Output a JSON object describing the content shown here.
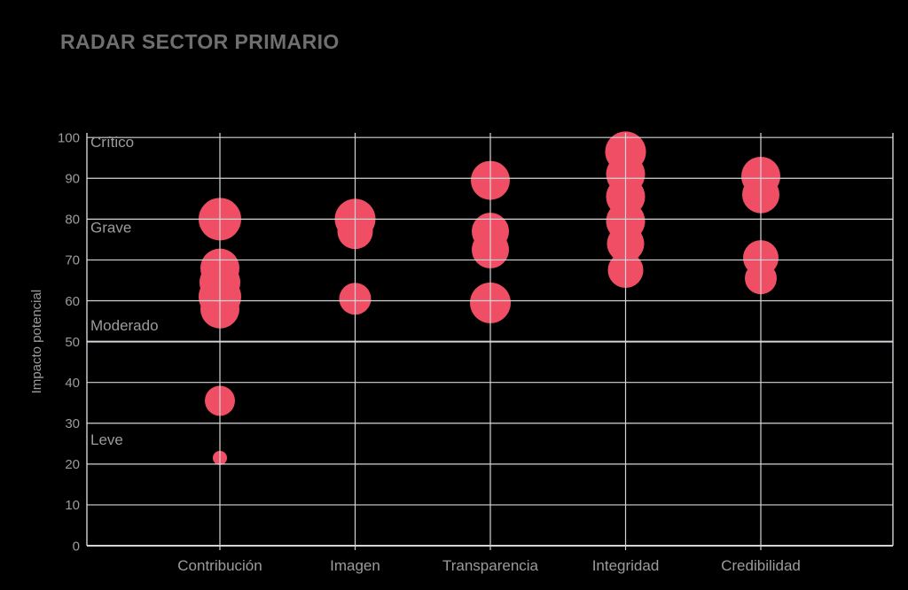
{
  "title": "RADAR SECTOR PRIMARIO",
  "colors": {
    "background": "#000000",
    "title_text": "#6f6f6f",
    "axis_text": "#9c9c9c",
    "grid_line": "#d2d4d8",
    "bubble": "#ef4e64"
  },
  "chart_data": {
    "type": "scatter",
    "subtype": "bubble",
    "title": "RADAR SECTOR PRIMARIO",
    "xlabel": "",
    "ylabel": "Impacto potencial",
    "ylim": [
      0,
      100
    ],
    "ytick_step": 10,
    "y_ticks": [
      0,
      10,
      20,
      30,
      40,
      50,
      60,
      70,
      80,
      90,
      100
    ],
    "grid": true,
    "legend": "none",
    "categories": [
      "Contribución",
      "Imagen",
      "Transparencia",
      "Integridad",
      "Credibilidad"
    ],
    "zone_labels": [
      {
        "label": "Crítico",
        "value": 99
      },
      {
        "label": "Grave",
        "value": 78
      },
      {
        "label": "Moderado",
        "value": 54
      },
      {
        "label": "Leve",
        "value": 26
      }
    ],
    "series": [
      {
        "name": "Contribución",
        "points": [
          {
            "y": 80,
            "r": 24
          },
          {
            "y": 68,
            "r": 22
          },
          {
            "y": 64.5,
            "r": 23
          },
          {
            "y": 61,
            "r": 24
          },
          {
            "y": 58,
            "r": 22
          },
          {
            "y": 35.5,
            "r": 17
          },
          {
            "y": 21.5,
            "r": 8
          }
        ]
      },
      {
        "name": "Imagen",
        "points": [
          {
            "y": 80,
            "r": 23
          },
          {
            "y": 77,
            "r": 20
          },
          {
            "y": 60.5,
            "r": 18
          }
        ]
      },
      {
        "name": "Transparencia",
        "points": [
          {
            "y": 89.5,
            "r": 22
          },
          {
            "y": 77,
            "r": 21
          },
          {
            "y": 72.5,
            "r": 21
          },
          {
            "y": 59.5,
            "r": 23
          }
        ]
      },
      {
        "name": "Integridad",
        "points": [
          {
            "y": 96.5,
            "r": 23
          },
          {
            "y": 91,
            "r": 22
          },
          {
            "y": 85.5,
            "r": 22
          },
          {
            "y": 79.5,
            "r": 22
          },
          {
            "y": 74,
            "r": 21
          },
          {
            "y": 67.5,
            "r": 20
          }
        ]
      },
      {
        "name": "Credibilidad",
        "points": [
          {
            "y": 90.5,
            "r": 22
          },
          {
            "y": 86,
            "r": 21
          },
          {
            "y": 70.5,
            "r": 20
          },
          {
            "y": 65.5,
            "r": 18
          }
        ]
      }
    ]
  }
}
